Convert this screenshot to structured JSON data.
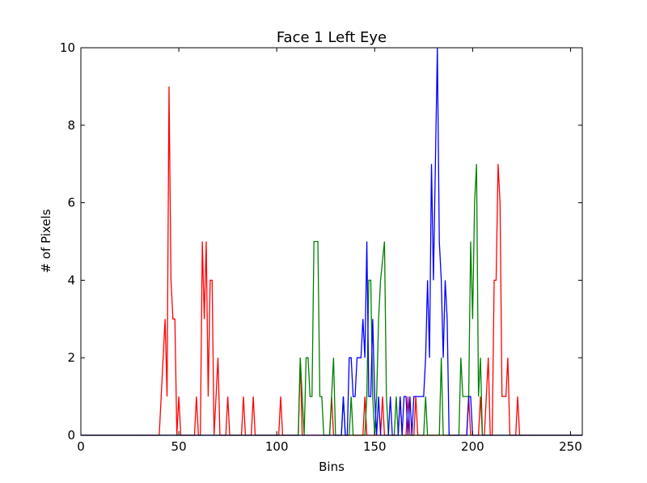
{
  "chart_data": {
    "type": "line",
    "title": "Face 1 Left Eye",
    "xlabel": "Bins",
    "ylabel": "# of Pixels",
    "xlim": [
      0,
      256
    ],
    "ylim": [
      0,
      10
    ],
    "xticks": [
      0,
      50,
      100,
      150,
      200,
      250
    ],
    "yticks": [
      0,
      2,
      4,
      6,
      8,
      10
    ],
    "grid": false,
    "series": [
      {
        "color": "#ff0000",
        "points": [
          [
            0,
            0
          ],
          [
            40,
            0
          ],
          [
            43,
            3
          ],
          [
            44,
            1
          ],
          [
            45,
            9
          ],
          [
            46,
            4
          ],
          [
            47,
            3
          ],
          [
            48,
            3
          ],
          [
            49,
            0
          ],
          [
            50,
            1
          ],
          [
            51,
            0
          ],
          [
            58,
            0
          ],
          [
            59,
            1
          ],
          [
            60,
            0
          ],
          [
            61,
            0
          ],
          [
            62,
            5
          ],
          [
            63,
            3
          ],
          [
            64,
            5
          ],
          [
            65,
            1
          ],
          [
            66,
            4
          ],
          [
            67,
            4
          ],
          [
            68,
            0
          ],
          [
            70,
            2
          ],
          [
            71,
            0
          ],
          [
            74,
            0
          ],
          [
            75,
            1
          ],
          [
            76,
            0
          ],
          [
            82,
            0
          ],
          [
            83,
            1
          ],
          [
            84,
            0
          ],
          [
            87,
            0
          ],
          [
            88,
            1
          ],
          [
            89,
            0
          ],
          [
            101,
            0
          ],
          [
            102,
            1
          ],
          [
            103,
            0
          ],
          [
            111,
            0
          ],
          [
            112,
            2
          ],
          [
            113,
            0
          ],
          [
            127,
            0
          ],
          [
            128,
            1
          ],
          [
            129,
            0
          ],
          [
            144,
            0
          ],
          [
            145,
            1
          ],
          [
            146,
            0
          ],
          [
            153,
            0
          ],
          [
            154,
            1
          ],
          [
            155,
            0
          ],
          [
            162,
            0
          ],
          [
            163,
            1
          ],
          [
            164,
            0
          ],
          [
            166,
            0
          ],
          [
            167,
            1
          ],
          [
            168,
            0
          ],
          [
            170,
            0
          ],
          [
            171,
            1
          ],
          [
            172,
            0
          ],
          [
            197,
            0
          ],
          [
            198,
            1
          ],
          [
            199,
            0
          ],
          [
            203,
            0
          ],
          [
            204,
            1
          ],
          [
            205,
            0
          ],
          [
            206,
            0
          ],
          [
            207,
            1
          ],
          [
            208,
            2
          ],
          [
            209,
            0
          ],
          [
            210,
            0
          ],
          [
            211,
            4
          ],
          [
            212,
            4
          ],
          [
            213,
            7
          ],
          [
            214,
            6
          ],
          [
            215,
            1
          ],
          [
            217,
            1
          ],
          [
            218,
            2
          ],
          [
            219,
            0
          ],
          [
            222,
            0
          ],
          [
            223,
            1
          ],
          [
            224,
            0
          ],
          [
            256,
            0
          ]
        ]
      },
      {
        "color": "#008000",
        "points": [
          [
            0,
            0
          ],
          [
            111,
            0
          ],
          [
            112,
            2
          ],
          [
            113,
            1
          ],
          [
            114,
            0
          ],
          [
            115,
            2
          ],
          [
            116,
            2
          ],
          [
            117,
            1
          ],
          [
            118,
            1
          ],
          [
            119,
            5
          ],
          [
            121,
            5
          ],
          [
            122,
            1
          ],
          [
            123,
            1
          ],
          [
            124,
            0
          ],
          [
            127,
            0
          ],
          [
            128,
            1
          ],
          [
            129,
            2
          ],
          [
            130,
            0
          ],
          [
            133,
            0
          ],
          [
            134,
            1
          ],
          [
            135,
            0
          ],
          [
            137,
            0
          ],
          [
            138,
            1
          ],
          [
            139,
            0
          ],
          [
            145,
            0
          ],
          [
            146,
            1
          ],
          [
            147,
            4
          ],
          [
            148,
            4
          ],
          [
            149,
            1
          ],
          [
            150,
            0
          ],
          [
            151,
            1
          ],
          [
            152,
            3
          ],
          [
            153,
            4
          ],
          [
            155,
            5
          ],
          [
            156,
            1
          ],
          [
            157,
            0
          ],
          [
            160,
            0
          ],
          [
            161,
            1
          ],
          [
            162,
            0
          ],
          [
            175,
            0
          ],
          [
            176,
            1
          ],
          [
            177,
            0
          ],
          [
            183,
            0
          ],
          [
            184,
            2
          ],
          [
            185,
            0
          ],
          [
            193,
            0
          ],
          [
            194,
            2
          ],
          [
            195,
            1
          ],
          [
            196,
            1
          ],
          [
            197,
            1
          ],
          [
            198,
            1
          ],
          [
            199,
            5
          ],
          [
            200,
            3
          ],
          [
            201,
            6
          ],
          [
            202,
            7
          ],
          [
            203,
            1
          ],
          [
            204,
            2
          ],
          [
            205,
            0
          ],
          [
            256,
            0
          ]
        ]
      },
      {
        "color": "#0000ff",
        "points": [
          [
            0,
            0
          ],
          [
            133,
            0
          ],
          [
            134,
            1
          ],
          [
            135,
            0
          ],
          [
            136,
            0
          ],
          [
            137,
            2
          ],
          [
            138,
            2
          ],
          [
            139,
            1
          ],
          [
            140,
            1
          ],
          [
            141,
            2
          ],
          [
            142,
            2
          ],
          [
            143,
            2
          ],
          [
            144,
            3
          ],
          [
            145,
            2
          ],
          [
            146,
            5
          ],
          [
            147,
            1
          ],
          [
            148,
            1
          ],
          [
            149,
            3
          ],
          [
            150,
            1
          ],
          [
            151,
            0
          ],
          [
            152,
            1
          ],
          [
            153,
            0
          ],
          [
            157,
            0
          ],
          [
            158,
            1
          ],
          [
            159,
            0
          ],
          [
            162,
            0
          ],
          [
            163,
            1
          ],
          [
            164,
            0
          ],
          [
            165,
            1
          ],
          [
            166,
            1
          ],
          [
            167,
            0
          ],
          [
            168,
            1
          ],
          [
            169,
            0
          ],
          [
            170,
            1
          ],
          [
            175,
            1
          ],
          [
            176,
            2
          ],
          [
            177,
            4
          ],
          [
            178,
            2
          ],
          [
            179,
            7
          ],
          [
            180,
            4
          ],
          [
            182,
            10
          ],
          [
            183,
            5
          ],
          [
            184,
            4
          ],
          [
            185,
            2
          ],
          [
            186,
            4
          ],
          [
            187,
            3
          ],
          [
            188,
            0
          ],
          [
            197,
            0
          ],
          [
            198,
            1
          ],
          [
            199,
            1
          ],
          [
            200,
            0
          ],
          [
            256,
            0
          ]
        ]
      }
    ]
  }
}
